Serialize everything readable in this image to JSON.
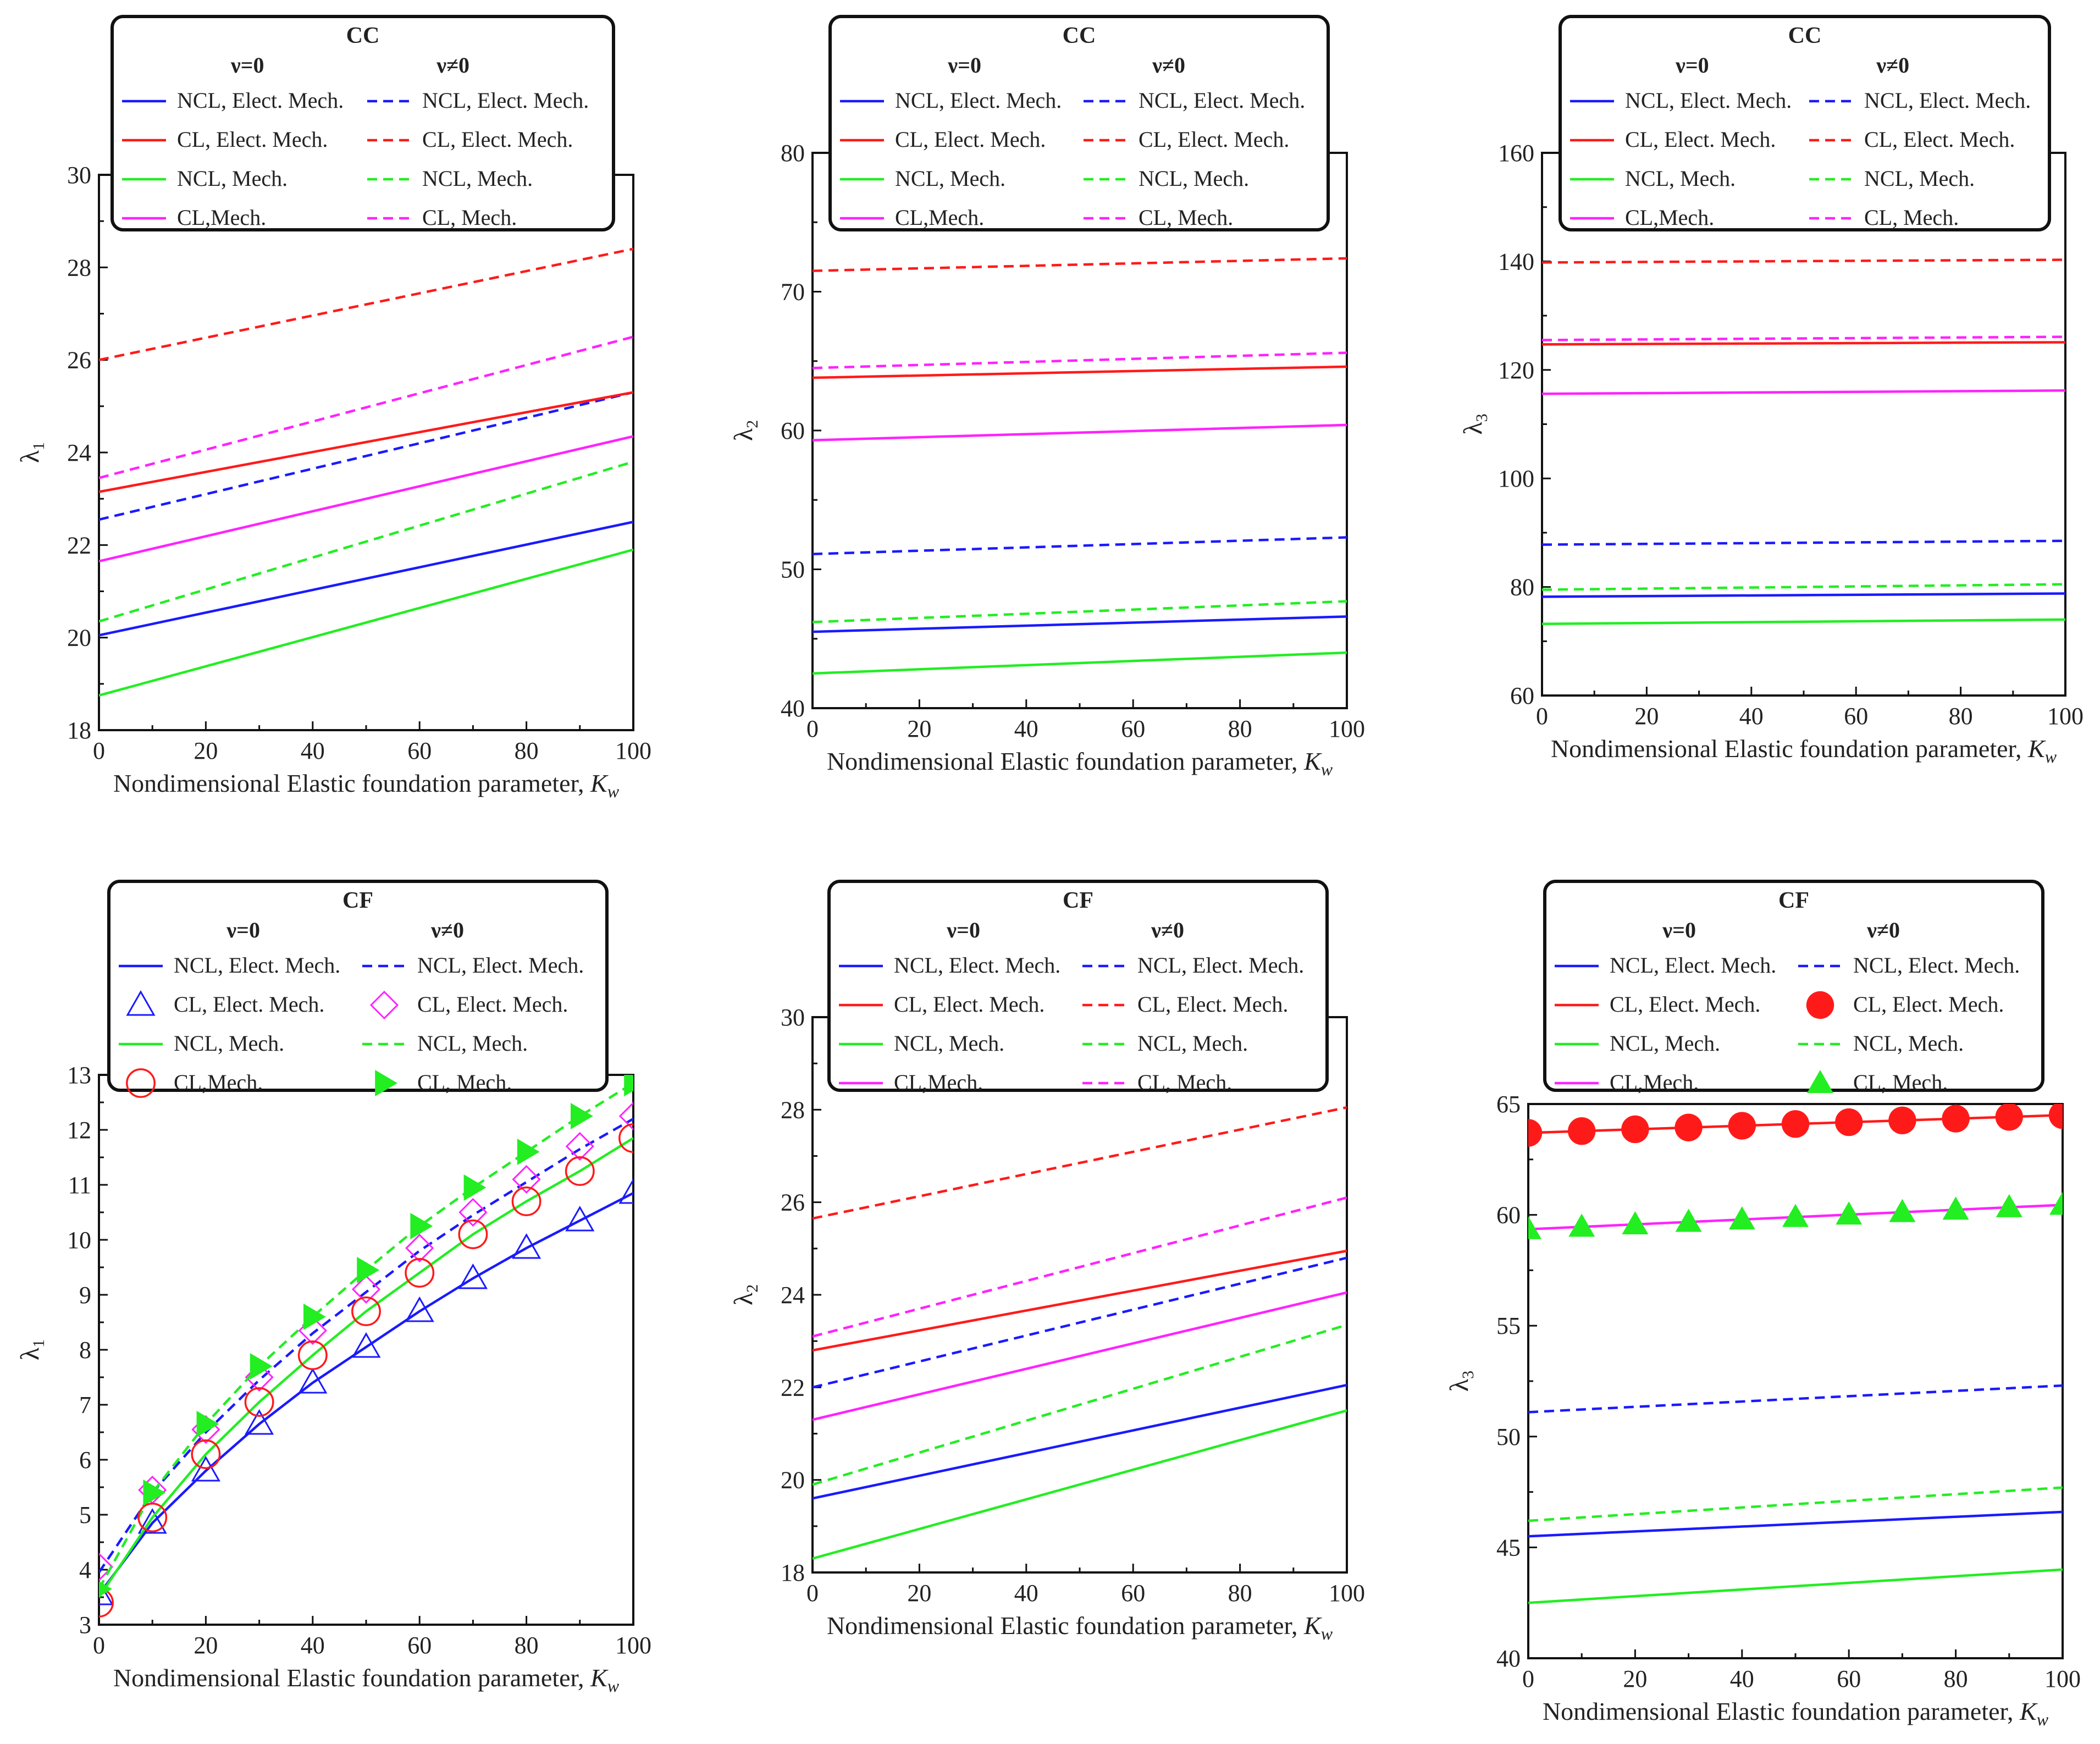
{
  "common": {
    "xlabel_main": "Nondimensional Elastic foundation parameter, ",
    "xlabel_sym": "K",
    "xlabel_sub": "w",
    "legend_col1": "ν=0",
    "legend_col2": "ν≠0",
    "xticks": [
      "0",
      "20",
      "40",
      "60",
      "80",
      "100"
    ]
  },
  "colors": {
    "blue": "#1a1aff",
    "red": "#ff1a1a",
    "green": "#22ee22",
    "magenta": "#ff22ff"
  },
  "chart_data": [
    {
      "type": "line",
      "title": "CC",
      "ylabel": "λ₁",
      "ylabel_base": "λ",
      "ylabel_sub": "1",
      "xlim": [
        0,
        100
      ],
      "ylim": [
        18,
        30
      ],
      "yticks": [
        "18",
        "20",
        "22",
        "24",
        "26",
        "28",
        "30"
      ],
      "legend": [
        "NCL, Elect. Mech.",
        "NCL, Elect. Mech.",
        "CL, Elect. Mech.",
        "CL, Elect. Mech.",
        "NCL, Mech.",
        "NCL, Mech.",
        "CL,Mech.",
        "CL,  Mech."
      ],
      "series": [
        {
          "name": "NCL, Elect. Mech. (ν=0)",
          "color": "blue",
          "dash": false,
          "x": [
            0,
            100
          ],
          "values": [
            20.05,
            22.5
          ]
        },
        {
          "name": "NCL, Elect. Mech. (ν≠0)",
          "color": "blue",
          "dash": true,
          "x": [
            0,
            100
          ],
          "values": [
            22.55,
            25.3
          ]
        },
        {
          "name": "CL, Elect. Mech. (ν=0)",
          "color": "red",
          "dash": false,
          "x": [
            0,
            100
          ],
          "values": [
            23.15,
            25.3
          ]
        },
        {
          "name": "CL, Elect. Mech. (ν≠0)",
          "color": "red",
          "dash": true,
          "x": [
            0,
            100
          ],
          "values": [
            26.0,
            28.4
          ]
        },
        {
          "name": "NCL, Mech. (ν=0)",
          "color": "green",
          "dash": false,
          "x": [
            0,
            100
          ],
          "values": [
            18.75,
            21.9
          ]
        },
        {
          "name": "NCL, Mech. (ν≠0)",
          "color": "green",
          "dash": true,
          "x": [
            0,
            100
          ],
          "values": [
            20.35,
            23.8
          ]
        },
        {
          "name": "CL,Mech. (ν=0)",
          "color": "magenta",
          "dash": false,
          "x": [
            0,
            100
          ],
          "values": [
            21.65,
            24.35
          ]
        },
        {
          "name": "CL,  Mech. (ν≠0)",
          "color": "magenta",
          "dash": true,
          "x": [
            0,
            100
          ],
          "values": [
            23.45,
            26.5
          ]
        }
      ]
    },
    {
      "type": "line",
      "title": "CC",
      "ylabel": "λ₂",
      "ylabel_base": "λ",
      "ylabel_sub": "2",
      "xlim": [
        0,
        100
      ],
      "ylim": [
        40,
        80
      ],
      "yticks": [
        "40",
        "50",
        "60",
        "70",
        "80"
      ],
      "legend": [
        "NCL, Elect. Mech.",
        "NCL, Elect. Mech.",
        "CL, Elect. Mech.",
        "CL, Elect. Mech.",
        "NCL, Mech.",
        "NCL, Mech.",
        "CL,Mech.",
        "CL,  Mech."
      ],
      "series": [
        {
          "name": "NCL, Elect. Mech. (ν=0)",
          "color": "blue",
          "dash": false,
          "x": [
            0,
            100
          ],
          "values": [
            45.5,
            46.6
          ]
        },
        {
          "name": "NCL, Elect. Mech. (ν≠0)",
          "color": "blue",
          "dash": true,
          "x": [
            0,
            100
          ],
          "values": [
            51.1,
            52.3
          ]
        },
        {
          "name": "CL, Elect. Mech. (ν=0)",
          "color": "red",
          "dash": false,
          "x": [
            0,
            100
          ],
          "values": [
            63.8,
            64.6
          ]
        },
        {
          "name": "CL, Elect. Mech. (ν≠0)",
          "color": "red",
          "dash": true,
          "x": [
            0,
            100
          ],
          "values": [
            71.5,
            72.4
          ]
        },
        {
          "name": "NCL, Mech. (ν=0)",
          "color": "green",
          "dash": false,
          "x": [
            0,
            100
          ],
          "values": [
            42.5,
            44.0
          ]
        },
        {
          "name": "NCL, Mech. (ν≠0)",
          "color": "green",
          "dash": true,
          "x": [
            0,
            100
          ],
          "values": [
            46.2,
            47.7
          ]
        },
        {
          "name": "CL,Mech. (ν=0)",
          "color": "magenta",
          "dash": false,
          "x": [
            0,
            100
          ],
          "values": [
            59.3,
            60.4
          ]
        },
        {
          "name": "CL,  Mech. (ν≠0)",
          "color": "magenta",
          "dash": true,
          "x": [
            0,
            100
          ],
          "values": [
            64.5,
            65.6
          ]
        }
      ]
    },
    {
      "type": "line",
      "title": "CC",
      "ylabel": "λ₃",
      "ylabel_base": "λ",
      "ylabel_sub": "3",
      "xlim": [
        0,
        100
      ],
      "ylim": [
        60,
        160
      ],
      "yticks": [
        "60",
        "80",
        "100",
        "120",
        "140",
        "160"
      ],
      "legend": [
        "NCL, Elect. Mech.",
        "NCL, Elect. Mech.",
        "CL, Elect. Mech.",
        "CL, Elect. Mech.",
        "NCL, Mech.",
        "NCL, Mech.",
        "CL,Mech.",
        "CL,  Mech."
      ],
      "series": [
        {
          "name": "NCL, Elect. Mech. (ν=0)",
          "color": "blue",
          "dash": false,
          "x": [
            0,
            100
          ],
          "values": [
            78.2,
            78.8
          ]
        },
        {
          "name": "NCL, Elect. Mech. (ν≠0)",
          "color": "blue",
          "dash": true,
          "x": [
            0,
            100
          ],
          "values": [
            87.8,
            88.5
          ]
        },
        {
          "name": "CL, Elect. Mech. (ν=0)",
          "color": "red",
          "dash": false,
          "x": [
            0,
            100
          ],
          "values": [
            124.7,
            125.1
          ]
        },
        {
          "name": "CL, Elect. Mech. (ν≠0)",
          "color": "red",
          "dash": true,
          "x": [
            0,
            100
          ],
          "values": [
            139.8,
            140.3
          ]
        },
        {
          "name": "NCL, Mech. (ν=0)",
          "color": "green",
          "dash": false,
          "x": [
            0,
            100
          ],
          "values": [
            73.2,
            74.0
          ]
        },
        {
          "name": "NCL, Mech. (ν≠0)",
          "color": "green",
          "dash": true,
          "x": [
            0,
            100
          ],
          "values": [
            79.5,
            80.5
          ]
        },
        {
          "name": "CL,Mech. (ν=0)",
          "color": "magenta",
          "dash": false,
          "x": [
            0,
            100
          ],
          "values": [
            115.6,
            116.2
          ]
        },
        {
          "name": "CL,  Mech. (ν≠0)",
          "color": "magenta",
          "dash": true,
          "x": [
            0,
            100
          ],
          "values": [
            125.5,
            126.1
          ]
        }
      ]
    },
    {
      "type": "line",
      "title": "CF",
      "ylabel": "λ₁",
      "ylabel_base": "λ",
      "ylabel_sub": "1",
      "xlim": [
        0,
        100
      ],
      "ylim": [
        3,
        13
      ],
      "yticks": [
        "3",
        "4",
        "5",
        "6",
        "7",
        "8",
        "9",
        "10",
        "11",
        "12",
        "13"
      ],
      "legend": [
        "NCL, Elect. Mech.",
        "NCL, Elect. Mech.",
        "CL, Elect. Mech.",
        "CL, Elect. Mech.",
        "NCL, Mech.",
        "NCL, Mech.",
        "CL,Mech.",
        "CL,  Mech."
      ],
      "series": [
        {
          "name": "NCL, Elect. Mech. (ν=0)",
          "color": "blue",
          "dash": false,
          "x": [
            0,
            10,
            20,
            30,
            40,
            50,
            60,
            70,
            80,
            90,
            100
          ],
          "values": [
            3.55,
            4.85,
            5.8,
            6.65,
            7.4,
            8.05,
            8.7,
            9.3,
            9.85,
            10.35,
            10.85
          ]
        },
        {
          "name": "NCL, Elect. Mech. (ν≠0)",
          "color": "blue",
          "dash": true,
          "x": [
            0,
            10,
            20,
            30,
            40,
            50,
            60,
            70,
            80,
            90,
            100
          ],
          "values": [
            3.95,
            5.4,
            6.5,
            7.45,
            8.3,
            9.05,
            9.8,
            10.45,
            11.05,
            11.65,
            12.2
          ]
        },
        {
          "name": "CL, Elect. Mech. (ν=0)",
          "color": "blue",
          "marker": "open-triangle",
          "x": [
            0,
            10,
            20,
            30,
            40,
            50,
            60,
            70,
            80,
            90,
            100
          ],
          "values": [
            3.55,
            4.85,
            5.8,
            6.65,
            7.4,
            8.05,
            8.7,
            9.3,
            9.85,
            10.35,
            10.85
          ]
        },
        {
          "name": "CL, Elect. Mech. (ν≠0)",
          "color": "magenta",
          "marker": "open-diamond",
          "x": [
            0,
            10,
            20,
            30,
            40,
            50,
            60,
            70,
            80,
            90,
            100
          ],
          "values": [
            4.05,
            5.45,
            6.55,
            7.5,
            8.35,
            9.1,
            9.85,
            10.5,
            11.1,
            11.7,
            12.25
          ]
        },
        {
          "name": "NCL, Mech. (ν=0)",
          "color": "green",
          "dash": false,
          "x": [
            0,
            10,
            20,
            30,
            40,
            50,
            60,
            70,
            80,
            90,
            100
          ],
          "values": [
            3.5,
            4.95,
            6.1,
            7.05,
            7.9,
            8.7,
            9.4,
            10.1,
            10.7,
            11.25,
            11.85
          ]
        },
        {
          "name": "NCL, Mech. (ν≠0)",
          "color": "green",
          "dash": true,
          "x": [
            0,
            10,
            20,
            30,
            40,
            50,
            60,
            70,
            80,
            90,
            100
          ],
          "values": [
            3.65,
            5.4,
            6.65,
            7.7,
            8.6,
            9.45,
            10.25,
            10.95,
            11.6,
            12.25,
            12.85
          ]
        },
        {
          "name": "CL,Mech. (ν=0)",
          "color": "red",
          "marker": "open-circle",
          "x": [
            0,
            10,
            20,
            30,
            40,
            50,
            60,
            70,
            80,
            90,
            100
          ],
          "values": [
            3.4,
            4.95,
            6.1,
            7.05,
            7.9,
            8.7,
            9.4,
            10.1,
            10.7,
            11.25,
            11.85
          ]
        },
        {
          "name": "CL,  Mech. (ν≠0)",
          "color": "green",
          "marker": "filled-right-triangle",
          "x": [
            0,
            10,
            20,
            30,
            40,
            50,
            60,
            70,
            80,
            90,
            100
          ],
          "values": [
            3.65,
            5.4,
            6.65,
            7.7,
            8.6,
            9.45,
            10.25,
            10.95,
            11.6,
            12.25,
            12.85
          ]
        }
      ]
    },
    {
      "type": "line",
      "title": "CF",
      "ylabel": "λ₂",
      "ylabel_base": "λ",
      "ylabel_sub": "2",
      "xlim": [
        0,
        100
      ],
      "ylim": [
        18,
        30
      ],
      "yticks": [
        "18",
        "20",
        "22",
        "24",
        "26",
        "28",
        "30"
      ],
      "legend": [
        "NCL, Elect. Mech.",
        "NCL, Elect. Mech.",
        "CL, Elect. Mech.",
        "CL, Elect. Mech.",
        "NCL, Mech.",
        "NCL, Mech.",
        "CL,Mech.",
        "CL,  Mech."
      ],
      "series": [
        {
          "name": "NCL, Elect. Mech. (ν=0)",
          "color": "blue",
          "dash": false,
          "x": [
            0,
            100
          ],
          "values": [
            19.6,
            22.05
          ]
        },
        {
          "name": "NCL, Elect. Mech. (ν≠0)",
          "color": "blue",
          "dash": true,
          "x": [
            0,
            100
          ],
          "values": [
            22.0,
            24.8
          ]
        },
        {
          "name": "CL, Elect. Mech. (ν=0)",
          "color": "red",
          "dash": false,
          "x": [
            0,
            100
          ],
          "values": [
            22.8,
            24.95
          ]
        },
        {
          "name": "CL, Elect. Mech. (ν≠0)",
          "color": "red",
          "dash": true,
          "x": [
            0,
            100
          ],
          "values": [
            25.65,
            28.05
          ]
        },
        {
          "name": "NCL, Mech. (ν=0)",
          "color": "green",
          "dash": false,
          "x": [
            0,
            100
          ],
          "values": [
            18.3,
            21.5
          ]
        },
        {
          "name": "NCL, Mech. (ν≠0)",
          "color": "green",
          "dash": true,
          "x": [
            0,
            100
          ],
          "values": [
            19.9,
            23.35
          ]
        },
        {
          "name": "CL,Mech. (ν=0)",
          "color": "magenta",
          "dash": false,
          "x": [
            0,
            100
          ],
          "values": [
            21.3,
            24.05
          ]
        },
        {
          "name": "CL,  Mech. (ν≠0)",
          "color": "magenta",
          "dash": true,
          "x": [
            0,
            100
          ],
          "values": [
            23.1,
            26.1
          ]
        }
      ]
    },
    {
      "type": "line",
      "title": "CF",
      "ylabel": "λ₃",
      "ylabel_base": "λ",
      "ylabel_sub": "3",
      "xlim": [
        0,
        100
      ],
      "ylim": [
        40,
        65
      ],
      "yticks": [
        "40",
        "45",
        "50",
        "55",
        "60",
        "65"
      ],
      "legend": [
        "NCL, Elect. Mech.",
        "NCL, Elect. Mech.",
        "CL, Elect. Mech.",
        "CL, Elect. Mech.",
        "NCL, Mech.",
        "NCL, Mech.",
        "CL,Mech.",
        "CL,  Mech."
      ],
      "series": [
        {
          "name": "NCL, Elect. Mech. (ν=0)",
          "color": "blue",
          "dash": false,
          "x": [
            0,
            100
          ],
          "values": [
            45.5,
            46.6
          ]
        },
        {
          "name": "NCL, Elect. Mech. (ν≠0)",
          "color": "blue",
          "dash": true,
          "x": [
            0,
            100
          ],
          "values": [
            51.1,
            52.3
          ]
        },
        {
          "name": "CL, Elect. Mech. (ν=0)",
          "color": "red",
          "dash": false,
          "x": [
            0,
            10,
            20,
            30,
            40,
            50,
            60,
            70,
            80,
            90,
            100
          ],
          "values": [
            63.7,
            63.78,
            63.86,
            63.94,
            64.02,
            64.1,
            64.18,
            64.26,
            64.34,
            64.42,
            64.5
          ]
        },
        {
          "name": "CL, Elect. Mech. (ν≠0)",
          "color": "red",
          "marker": "filled-circle",
          "x": [
            0,
            10,
            20,
            30,
            40,
            50,
            60,
            70,
            80,
            90,
            100
          ],
          "values": [
            63.7,
            63.78,
            63.86,
            63.94,
            64.02,
            64.1,
            64.18,
            64.26,
            64.34,
            64.42,
            64.5
          ]
        },
        {
          "name": "NCL, Mech. (ν=0)",
          "color": "green",
          "dash": false,
          "x": [
            0,
            100
          ],
          "values": [
            42.5,
            44.0
          ]
        },
        {
          "name": "NCL, Mech. (ν≠0)",
          "color": "green",
          "dash": true,
          "x": [
            0,
            100
          ],
          "values": [
            46.2,
            47.7
          ]
        },
        {
          "name": "CL,Mech. (ν=0)",
          "color": "magenta",
          "dash": false,
          "x": [
            0,
            10,
            20,
            30,
            40,
            50,
            60,
            70,
            80,
            90,
            100
          ],
          "values": [
            59.35,
            59.46,
            59.57,
            59.68,
            59.79,
            59.9,
            60.01,
            60.12,
            60.23,
            60.34,
            60.45
          ]
        },
        {
          "name": "CL,  Mech. (ν≠0)",
          "color": "green",
          "marker": "filled-triangle",
          "x": [
            0,
            10,
            20,
            30,
            40,
            50,
            60,
            70,
            80,
            90,
            100
          ],
          "values": [
            59.35,
            59.46,
            59.57,
            59.68,
            59.79,
            59.9,
            60.01,
            60.12,
            60.23,
            60.34,
            60.45
          ]
        }
      ]
    }
  ]
}
